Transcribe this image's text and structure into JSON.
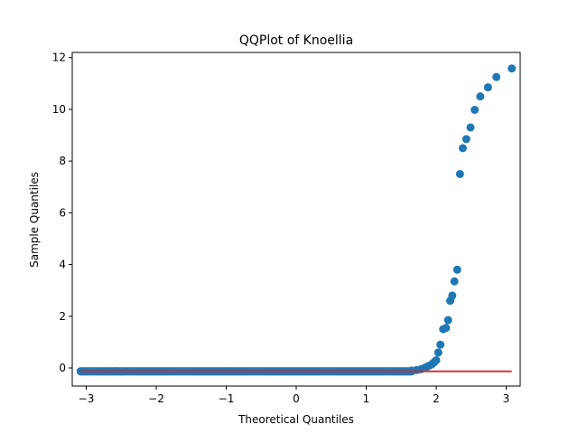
{
  "chart_data": {
    "type": "scatter",
    "title": "QQPlot of Knoellia",
    "xlabel": "Theoretical Quantiles",
    "ylabel": "Sample Quantiles",
    "xlim": [
      -3.2,
      3.2
    ],
    "ylim": [
      -0.7,
      12.2
    ],
    "xticks": [
      -3,
      -2,
      -1,
      0,
      1,
      2,
      3
    ],
    "xtick_labels": [
      "−3",
      "−2",
      "−1",
      "0",
      "1",
      "2",
      "3"
    ],
    "yticks": [
      0,
      2,
      4,
      6,
      8,
      10,
      12
    ],
    "ytick_labels": [
      "0",
      "2",
      "4",
      "6",
      "8",
      "10",
      "12"
    ],
    "grid": false,
    "marker_color": "#1f77b4",
    "line_color": "#d62728",
    "reference_line": {
      "x": [
        -3.08,
        3.08
      ],
      "y": [
        -0.13,
        -0.13
      ]
    },
    "tail_points": {
      "x": [
        1.65,
        1.72,
        1.78,
        1.83,
        1.87,
        1.91,
        1.94,
        1.97,
        2.0,
        2.03,
        2.06,
        2.1,
        2.14,
        2.17,
        2.2,
        2.23,
        2.26,
        2.3,
        2.34,
        2.38,
        2.43,
        2.49,
        2.55,
        2.63,
        2.74,
        2.86,
        3.08
      ],
      "y": [
        -0.1,
        -0.08,
        -0.05,
        0.0,
        0.05,
        0.1,
        0.15,
        0.22,
        0.3,
        0.6,
        0.9,
        1.5,
        1.55,
        1.85,
        2.6,
        2.8,
        3.35,
        3.8,
        7.5,
        8.5,
        8.85,
        9.3,
        9.98,
        10.5,
        10.85,
        11.25,
        11.58
      ]
    },
    "bulk_points": {
      "n": 500,
      "xrange": [
        -3.08,
        1.65
      ],
      "y": -0.13,
      "discrete_x": [
        -3.08,
        -2.8,
        -2.73,
        -2.65,
        -2.58,
        -2.5
      ]
    }
  }
}
